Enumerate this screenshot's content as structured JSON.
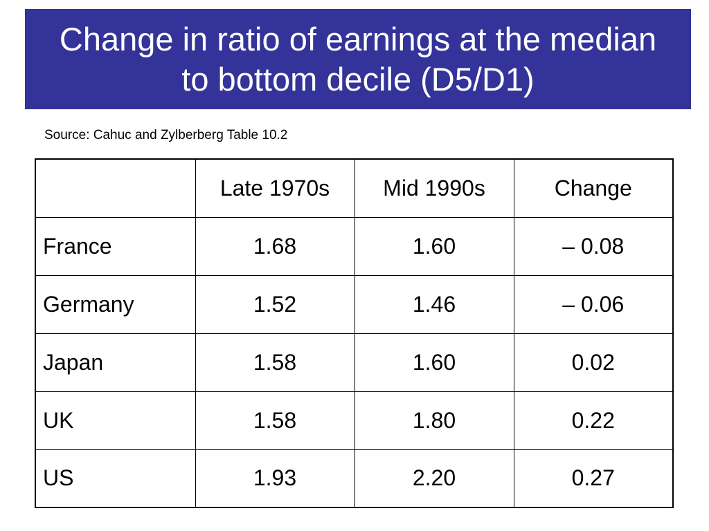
{
  "slide": {
    "title": "Change in ratio of earnings at the median to bottom decile (D5/D1)",
    "source": "Source: Cahuc and Zylberberg Table 10.2",
    "colors": {
      "title_background": "#333399",
      "title_text": "#ffffff"
    }
  },
  "table": {
    "headers": [
      "",
      "Late 1970s",
      "Mid 1990s",
      "Change"
    ],
    "rows": [
      {
        "country": "France",
        "late_1970s": "1.68",
        "mid_1990s": "1.60",
        "change": "– 0.08"
      },
      {
        "country": "Germany",
        "late_1970s": "1.52",
        "mid_1990s": "1.46",
        "change": "– 0.06"
      },
      {
        "country": "Japan",
        "late_1970s": "1.58",
        "mid_1990s": "1.60",
        "change": "0.02"
      },
      {
        "country": "UK",
        "late_1970s": "1.58",
        "mid_1990s": "1.80",
        "change": "0.22"
      },
      {
        "country": "US",
        "late_1970s": "1.93",
        "mid_1990s": "2.20",
        "change": "0.27"
      }
    ]
  }
}
